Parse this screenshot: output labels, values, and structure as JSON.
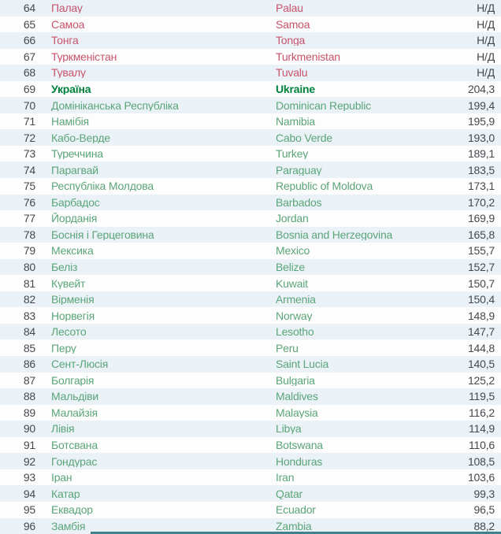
{
  "table": {
    "description": "Country ranking list, ranks 64-96, Ukrainian and English country names with numeric index values",
    "na_label": "Н/Д",
    "columns": [
      "rank",
      "country_uk",
      "country_en",
      "value"
    ],
    "rows": [
      {
        "rank": "64",
        "uk": "Палау",
        "en": "Palau",
        "value": "Н/Д",
        "style": "red"
      },
      {
        "rank": "65",
        "uk": "Самоа",
        "en": "Samoa",
        "value": "Н/Д",
        "style": "red"
      },
      {
        "rank": "66",
        "uk": "Тонга",
        "en": "Tonga",
        "value": "Н/Д",
        "style": "red"
      },
      {
        "rank": "67",
        "uk": "Туркменістан",
        "en": "Turkmenistan",
        "value": "Н/Д",
        "style": "red"
      },
      {
        "rank": "68",
        "uk": "Тувалу",
        "en": "Tuvalu",
        "value": "Н/Д",
        "style": "red"
      },
      {
        "rank": "69",
        "uk": "Україна",
        "en": "Ukraine",
        "value": "204,3",
        "style": "highlight"
      },
      {
        "rank": "70",
        "uk": "Домініканська Республіка",
        "en": "Dominican Republic",
        "value": "199,4",
        "style": "green"
      },
      {
        "rank": "71",
        "uk": "Намібія",
        "en": "Namibia",
        "value": "195,9",
        "style": "green"
      },
      {
        "rank": "72",
        "uk": "Кабо-Верде",
        "en": "Cabo Verde",
        "value": "193,0",
        "style": "green"
      },
      {
        "rank": "73",
        "uk": "Туреччина",
        "en": "Turkey",
        "value": "189,1",
        "style": "green"
      },
      {
        "rank": "74",
        "uk": "Парагвай",
        "en": "Paraguay",
        "value": "183,5",
        "style": "green"
      },
      {
        "rank": "75",
        "uk": "Республіка Молдова",
        "en": "Republic of Moldova",
        "value": "173,1",
        "style": "green"
      },
      {
        "rank": "76",
        "uk": "Барбадос",
        "en": "Barbados",
        "value": "170,2",
        "style": "green"
      },
      {
        "rank": "77",
        "uk": "Йорданія",
        "en": "Jordan",
        "value": "169,9",
        "style": "green"
      },
      {
        "rank": "78",
        "uk": "Боснія і Герцеговина",
        "en": "Bosnia and Herzegovina",
        "value": "165,8",
        "style": "green"
      },
      {
        "rank": "79",
        "uk": "Мексика",
        "en": "Mexico",
        "value": "155,7",
        "style": "green"
      },
      {
        "rank": "80",
        "uk": "Беліз",
        "en": "Belize",
        "value": "152,7",
        "style": "green"
      },
      {
        "rank": "81",
        "uk": "Кувейт",
        "en": "Kuwait",
        "value": "150,7",
        "style": "green"
      },
      {
        "rank": "82",
        "uk": "Вірменія",
        "en": "Armenia",
        "value": "150,4",
        "style": "green"
      },
      {
        "rank": "83",
        "uk": "Норвегія",
        "en": "Norway",
        "value": "148,9",
        "style": "green"
      },
      {
        "rank": "84",
        "uk": "Лесото",
        "en": "Lesotho",
        "value": "147,7",
        "style": "green"
      },
      {
        "rank": "85",
        "uk": "Перу",
        "en": "Peru",
        "value": "144,8",
        "style": "green"
      },
      {
        "rank": "86",
        "uk": "Сент-Люсія",
        "en": "Saint Lucia",
        "value": "140,5",
        "style": "green"
      },
      {
        "rank": "87",
        "uk": "Болгарія",
        "en": "Bulgaria",
        "value": "125,2",
        "style": "green"
      },
      {
        "rank": "88",
        "uk": "Мальдіви",
        "en": "Maldives",
        "value": "119,5",
        "style": "green"
      },
      {
        "rank": "89",
        "uk": "Малайзія",
        "en": "Malaysia",
        "value": "116,2",
        "style": "green"
      },
      {
        "rank": "90",
        "uk": "Лівія",
        "en": "Libya",
        "value": "114,9",
        "style": "green"
      },
      {
        "rank": "91",
        "uk": "Ботсвана",
        "en": "Botswana",
        "value": "110,6",
        "style": "green"
      },
      {
        "rank": "92",
        "uk": "Гондурас",
        "en": "Honduras",
        "value": "108,5",
        "style": "green"
      },
      {
        "rank": "93",
        "uk": "Іран",
        "en": "Iran",
        "value": "103,6",
        "style": "green"
      },
      {
        "rank": "94",
        "uk": "Катар",
        "en": "Qatar",
        "value": "99,3",
        "style": "green"
      },
      {
        "rank": "95",
        "uk": "Еквадор",
        "en": "Ecuador",
        "value": "96,5",
        "style": "green"
      },
      {
        "rank": "96",
        "uk": "Замбія",
        "en": "Zambia",
        "value": "88,2",
        "style": "green"
      }
    ]
  },
  "colors": {
    "red_text": "#c9536a",
    "green_text": "#5ba578",
    "highlight_green_text": "#00813c",
    "dark_text": "#46484c",
    "row_alt_bg": "#eaf2f8",
    "row_bg": "#fdfdfe",
    "divider_teal": "#41808d"
  }
}
